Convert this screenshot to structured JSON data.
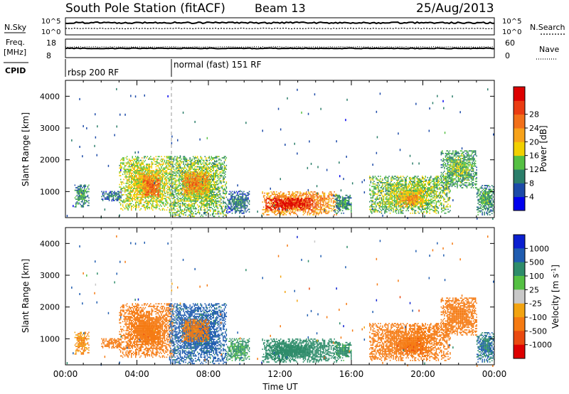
{
  "header": {
    "title": "South Pole Station (fitACF)",
    "beam": "Beam 13",
    "date": "25/Aug/2013"
  },
  "noise_panel": {
    "left_label": "N.Sky",
    "right_label": "N.Search",
    "left_ticks": [
      "10^5",
      "10^0"
    ],
    "right_ticks": [
      "10^5",
      "10^0"
    ]
  },
  "freq_panel": {
    "left_label_1": "Freq.",
    "left_label_2": "[MHz]",
    "right_label": "Nave",
    "left_ticks": [
      "18",
      "8"
    ],
    "right_ticks": [
      "60",
      "0"
    ]
  },
  "cpid_panel": {
    "label": "CPID",
    "segments": [
      {
        "label": "rbsp 200 RF",
        "start_hour": 0
      },
      {
        "label": "normal (fast) 151 RF",
        "start_hour": 6
      }
    ]
  },
  "axes": {
    "ylabel": "Slant Range [km]",
    "xlabel": "Time UT",
    "x_ticks": [
      "00:00",
      "04:00",
      "08:00",
      "12:00",
      "16:00",
      "20:00",
      "00:00"
    ],
    "y_ticks": [
      "1000",
      "2000",
      "3000",
      "4000"
    ]
  },
  "power_colorbar": {
    "label": "Power [dB]",
    "ticks": [
      "4",
      "8",
      "12",
      "16",
      "20",
      "24",
      "28"
    ],
    "colors": [
      "#0000ee",
      "#1c4aa8",
      "#2b7e6a",
      "#55c043",
      "#f2d000",
      "#f7a21a",
      "#f2701a",
      "#ea3c12",
      "#dd0000"
    ]
  },
  "velocity_colorbar": {
    "label": "Velocity [m s^-1]",
    "ticks": [
      "1000",
      "500",
      "100",
      "25",
      "-25",
      "-100",
      "-500",
      "-1000"
    ],
    "colors": [
      "#0b1fd0",
      "#1f5cb0",
      "#2e8c6a",
      "#55c043",
      "#c8c8c8",
      "#f2a310",
      "#f57a12",
      "#ea4a10",
      "#dd0000"
    ]
  },
  "chart_data": {
    "type": "heatmap",
    "x_range_hours": [
      0,
      24
    ],
    "y_range_km": [
      180,
      4500
    ],
    "regions": [
      {
        "t0": 0.5,
        "t1": 1.3,
        "r0": 500,
        "r1": 1200,
        "power": 8,
        "velocity": -100
      },
      {
        "t0": 2.0,
        "t1": 3.2,
        "r0": 700,
        "r1": 1000,
        "power": 6,
        "velocity": -200
      },
      {
        "t0": 3.0,
        "t1": 6.0,
        "r0": 400,
        "r1": 2100,
        "power": 14,
        "velocity": -300
      },
      {
        "t0": 4.3,
        "t1": 5.3,
        "r0": 800,
        "r1": 1500,
        "power": 22,
        "velocity": -350
      },
      {
        "t0": 5.8,
        "t1": 9.0,
        "r0": 200,
        "r1": 2100,
        "power": 12,
        "velocity": 150
      },
      {
        "t0": 6.5,
        "t1": 8.0,
        "r0": 900,
        "r1": 1600,
        "power": 20,
        "velocity": -150
      },
      {
        "t0": 9.0,
        "t1": 10.3,
        "r0": 300,
        "r1": 1000,
        "power": 6,
        "velocity": 30
      },
      {
        "t0": 11.0,
        "t1": 15.2,
        "r0": 250,
        "r1": 1000,
        "power": 20,
        "velocity": 60
      },
      {
        "t0": 11.2,
        "t1": 13.8,
        "r0": 400,
        "r1": 780,
        "power": 28,
        "velocity": 60
      },
      {
        "t0": 15.0,
        "t1": 16.0,
        "r0": 300,
        "r1": 900,
        "power": 8,
        "velocity": 40
      },
      {
        "t0": 17.0,
        "t1": 21.5,
        "r0": 300,
        "r1": 1500,
        "power": 12,
        "velocity": -200
      },
      {
        "t0": 18.5,
        "t1": 20.0,
        "r0": 500,
        "r1": 1000,
        "power": 18,
        "velocity": -400
      },
      {
        "t0": 21.0,
        "t1": 23.0,
        "r0": 1100,
        "r1": 2300,
        "power": 10,
        "velocity": -300
      },
      {
        "t0": 23.0,
        "t1": 24.0,
        "r0": 250,
        "r1": 1200,
        "power": 9,
        "velocity": 100
      }
    ]
  }
}
